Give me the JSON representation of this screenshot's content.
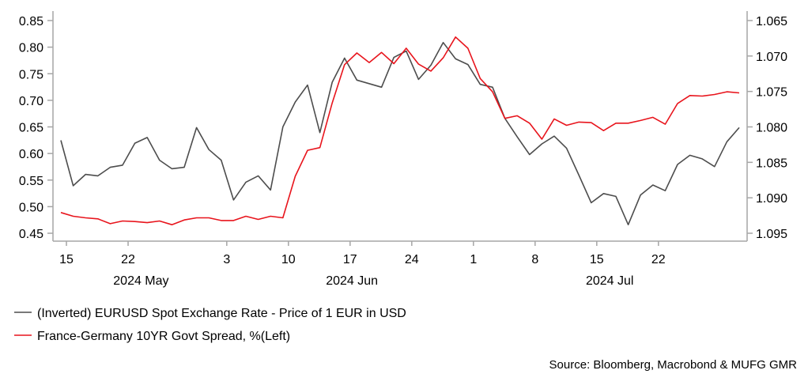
{
  "chart_data": {
    "type": "line",
    "title": "",
    "x_tick_labels": [
      "15",
      "22",
      "3",
      "10",
      "17",
      "24",
      "1",
      "8",
      "15",
      "22"
    ],
    "x_month_labels": [
      "2024 May",
      "2024 Jun",
      "2024 Jul"
    ],
    "left_axis": {
      "ylim": [
        0.45,
        0.85
      ],
      "ticks": [
        "0.85",
        "0.80",
        "0.75",
        "0.70",
        "0.65",
        "0.60",
        "0.55",
        "0.50",
        "0.45"
      ]
    },
    "right_axis": {
      "ylim": [
        1.065,
        1.095
      ],
      "inverted": true,
      "ticks": [
        "1.065",
        "1.070",
        "1.075",
        "1.080",
        "1.085",
        "1.090",
        "1.095"
      ]
    },
    "series": [
      {
        "name": "(Inverted) EURUSD Spot Exchange Rate - Price of 1 EUR in USD",
        "axis": "right",
        "color": "#4d4d4d",
        "values": [
          1.0819,
          1.0883,
          1.0867,
          1.0869,
          1.0857,
          1.0854,
          1.0823,
          1.0815,
          1.0847,
          1.0859,
          1.0857,
          1.0801,
          1.0832,
          1.0847,
          1.0903,
          1.0878,
          1.0869,
          1.0889,
          1.08,
          1.0765,
          1.0741,
          1.0808,
          1.0737,
          1.0703,
          1.0734,
          1.0739,
          1.0744,
          1.0702,
          1.0693,
          1.0733,
          1.0713,
          1.0681,
          1.0704,
          1.0712,
          1.074,
          1.0744,
          1.0788,
          1.0814,
          1.0839,
          1.0824,
          1.0813,
          1.083,
          1.0868,
          1.0907,
          1.0894,
          1.0898,
          1.0938,
          1.0896,
          1.0882,
          1.089,
          1.0853,
          1.084,
          1.0845,
          1.0856,
          1.0821,
          1.0801
        ]
      },
      {
        "name": "France-Germany 10YR Govt Spread, %(Left)",
        "axis": "left",
        "color": "#e8141c",
        "values": [
          0.489,
          0.482,
          0.479,
          0.477,
          0.468,
          0.473,
          0.472,
          0.47,
          0.473,
          0.466,
          0.475,
          0.479,
          0.479,
          0.474,
          0.474,
          0.482,
          0.476,
          0.482,
          0.479,
          0.557,
          0.606,
          0.611,
          0.695,
          0.767,
          0.789,
          0.771,
          0.79,
          0.769,
          0.798,
          0.768,
          0.755,
          0.78,
          0.819,
          0.798,
          0.741,
          0.716,
          0.666,
          0.671,
          0.657,
          0.627,
          0.665,
          0.653,
          0.659,
          0.658,
          0.643,
          0.657,
          0.657,
          0.662,
          0.668,
          0.655,
          0.694,
          0.709,
          0.708,
          0.711,
          0.716,
          0.714
        ]
      }
    ],
    "legend_placement": "bottom-left",
    "source": "Source: Bloomberg, Macrobond & MUFG GMR"
  }
}
